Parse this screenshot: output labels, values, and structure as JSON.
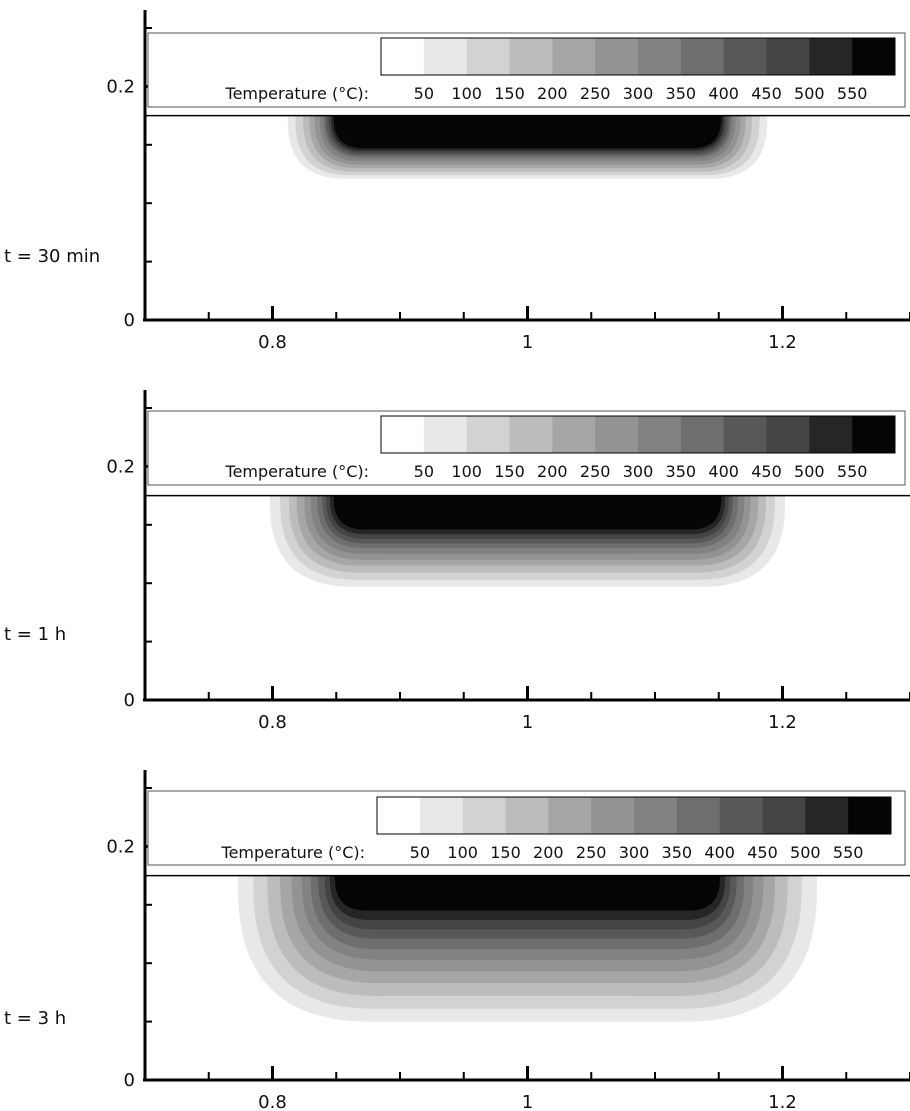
{
  "chart_data": [
    {
      "type": "heatmap",
      "panel_label": "t = 30 min",
      "x_ticks": [
        "0.8",
        "1",
        "1.2"
      ],
      "y_ticks": [
        "0",
        "0.2"
      ],
      "xlim": [
        0.7,
        1.3
      ],
      "ylim": [
        0,
        0.25
      ],
      "legend_title": "Temperature (°C):",
      "levels": [
        50,
        100,
        150,
        200,
        250,
        300,
        350,
        400,
        450,
        500,
        550
      ],
      "surface_y": 0.175,
      "contours": [
        {
          "from": 50,
          "x_left": 0.812,
          "x_right": 1.188,
          "depth": 0.054
        },
        {
          "from": 100,
          "x_left": 0.818,
          "x_right": 1.182,
          "depth": 0.051
        },
        {
          "from": 150,
          "x_left": 0.824,
          "x_right": 1.176,
          "depth": 0.048
        },
        {
          "from": 200,
          "x_left": 0.829,
          "x_right": 1.171,
          "depth": 0.045
        },
        {
          "from": 250,
          "x_left": 0.833,
          "x_right": 1.167,
          "depth": 0.042
        },
        {
          "from": 300,
          "x_left": 0.837,
          "x_right": 1.163,
          "depth": 0.039
        },
        {
          "from": 350,
          "x_left": 0.84,
          "x_right": 1.16,
          "depth": 0.036
        },
        {
          "from": 400,
          "x_left": 0.842,
          "x_right": 1.158,
          "depth": 0.034
        },
        {
          "from": 450,
          "x_left": 0.844,
          "x_right": 1.156,
          "depth": 0.032
        },
        {
          "from": 500,
          "x_left": 0.846,
          "x_right": 1.154,
          "depth": 0.03
        },
        {
          "from": 550,
          "x_left": 0.848,
          "x_right": 1.152,
          "depth": 0.028
        }
      ]
    },
    {
      "type": "heatmap",
      "panel_label": "t = 1 h",
      "x_ticks": [
        "0.8",
        "1",
        "1.2"
      ],
      "y_ticks": [
        "0",
        "0.2"
      ],
      "xlim": [
        0.7,
        1.3
      ],
      "ylim": [
        0,
        0.25
      ],
      "legend_title": "Temperature (°C):",
      "levels": [
        50,
        100,
        150,
        200,
        250,
        300,
        350,
        400,
        450,
        500,
        550
      ],
      "surface_y": 0.175,
      "contours": [
        {
          "from": 50,
          "x_left": 0.798,
          "x_right": 1.202,
          "depth": 0.078
        },
        {
          "from": 100,
          "x_left": 0.806,
          "x_right": 1.194,
          "depth": 0.072
        },
        {
          "from": 150,
          "x_left": 0.813,
          "x_right": 1.187,
          "depth": 0.066
        },
        {
          "from": 200,
          "x_left": 0.819,
          "x_right": 1.181,
          "depth": 0.06
        },
        {
          "from": 250,
          "x_left": 0.825,
          "x_right": 1.175,
          "depth": 0.055
        },
        {
          "from": 300,
          "x_left": 0.83,
          "x_right": 1.17,
          "depth": 0.05
        },
        {
          "from": 350,
          "x_left": 0.835,
          "x_right": 1.165,
          "depth": 0.045
        },
        {
          "from": 400,
          "x_left": 0.839,
          "x_right": 1.161,
          "depth": 0.041
        },
        {
          "from": 450,
          "x_left": 0.842,
          "x_right": 1.158,
          "depth": 0.037
        },
        {
          "from": 500,
          "x_left": 0.845,
          "x_right": 1.155,
          "depth": 0.033
        },
        {
          "from": 550,
          "x_left": 0.848,
          "x_right": 1.152,
          "depth": 0.029
        }
      ]
    },
    {
      "type": "heatmap",
      "panel_label": "t = 3 h",
      "x_ticks": [
        "0.8",
        "1",
        "1.2"
      ],
      "y_ticks": [
        "0",
        "0.2"
      ],
      "xlim": [
        0.7,
        1.3
      ],
      "ylim": [
        0,
        0.25
      ],
      "legend_title": "Temperature (°C):",
      "levels": [
        50,
        100,
        150,
        200,
        250,
        300,
        350,
        400,
        450,
        500,
        550
      ],
      "surface_y": 0.175,
      "contours": [
        {
          "from": 50,
          "x_left": 0.773,
          "x_right": 1.227,
          "depth": 0.125
        },
        {
          "from": 100,
          "x_left": 0.785,
          "x_right": 1.215,
          "depth": 0.114
        },
        {
          "from": 150,
          "x_left": 0.796,
          "x_right": 1.204,
          "depth": 0.103
        },
        {
          "from": 200,
          "x_left": 0.806,
          "x_right": 1.194,
          "depth": 0.092
        },
        {
          "from": 250,
          "x_left": 0.815,
          "x_right": 1.185,
          "depth": 0.082
        },
        {
          "from": 300,
          "x_left": 0.823,
          "x_right": 1.177,
          "depth": 0.072
        },
        {
          "from": 350,
          "x_left": 0.83,
          "x_right": 1.17,
          "depth": 0.063
        },
        {
          "from": 400,
          "x_left": 0.836,
          "x_right": 1.164,
          "depth": 0.054
        },
        {
          "from": 450,
          "x_left": 0.841,
          "x_right": 1.159,
          "depth": 0.046
        },
        {
          "from": 500,
          "x_left": 0.845,
          "x_right": 1.155,
          "depth": 0.038
        },
        {
          "from": 550,
          "x_left": 0.849,
          "x_right": 1.151,
          "depth": 0.03
        }
      ]
    }
  ],
  "colors": {
    "background": "#ffffff",
    "axis": "#000000",
    "levels": [
      "#ffffff",
      "#e8e8e8",
      "#d2d2d2",
      "#bcbcbc",
      "#a6a6a6",
      "#939393",
      "#828282",
      "#6e6e6e",
      "#585858",
      "#444444",
      "#262626",
      "#050505"
    ]
  }
}
